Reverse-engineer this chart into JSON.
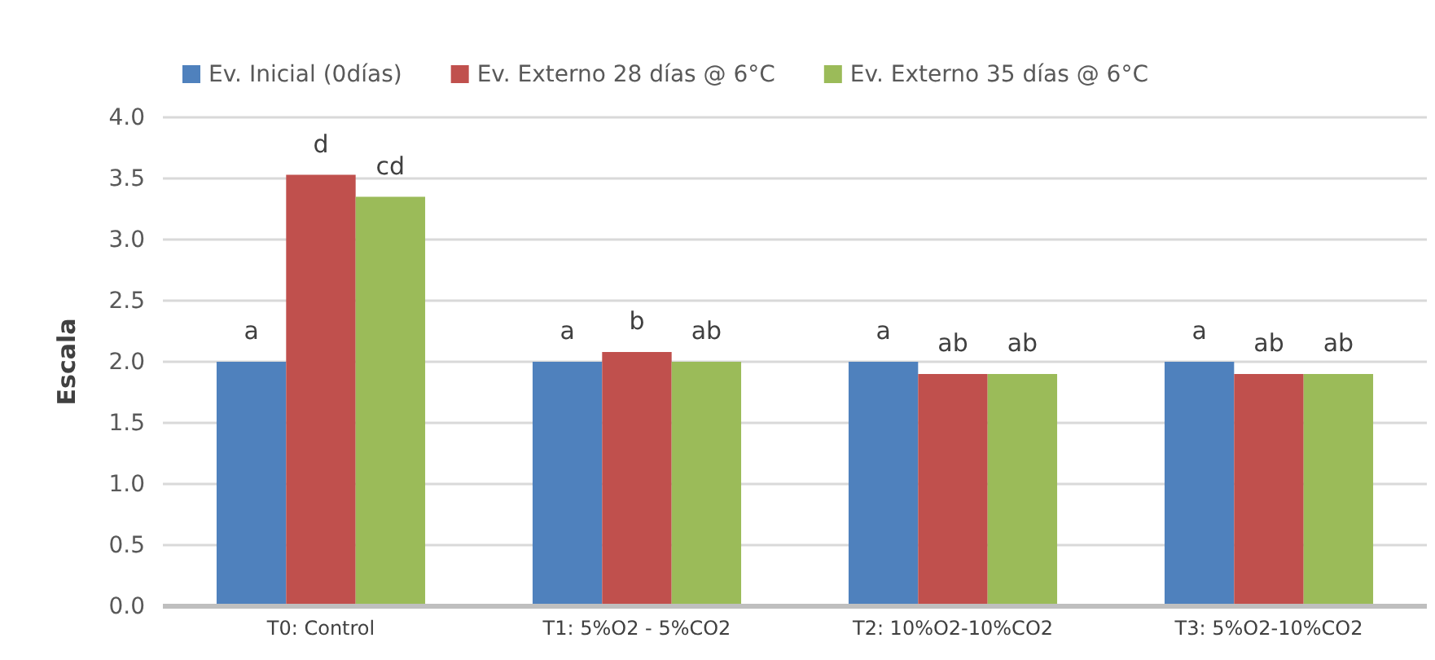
{
  "chart_data": {
    "type": "bar",
    "ylabel": "Escala",
    "categories": [
      "T0: Control",
      "T1: 5%O2 - 5%CO2",
      "T2: 10%O2-10%CO2",
      "T3: 5%O2-10%CO2"
    ],
    "series": [
      {
        "name": "Ev. Inicial (0días)",
        "color": "#4f81bd",
        "values": [
          2.0,
          2.0,
          2.0,
          2.0
        ],
        "value_labels": [
          "a",
          "a",
          "a",
          "a"
        ]
      },
      {
        "name": "Ev. Externo 28 días @ 6°C",
        "color": "#c0504d",
        "values": [
          3.53,
          2.08,
          1.9,
          1.9
        ],
        "value_labels": [
          "d",
          "b",
          "ab",
          "ab"
        ]
      },
      {
        "name": "Ev. Externo 35 días @ 6°C",
        "color": "#9bbb59",
        "values": [
          3.35,
          2.0,
          1.9,
          1.9
        ],
        "value_labels": [
          "cd",
          "ab",
          "ab",
          "ab"
        ]
      }
    ],
    "ylim": [
      0,
      4
    ],
    "yticks": [
      {
        "value": 0,
        "label": "0.0"
      },
      {
        "value": 0.5,
        "label": "0.5"
      },
      {
        "value": 1,
        "label": "1.0"
      },
      {
        "value": 1.5,
        "label": "1.5"
      },
      {
        "value": 2,
        "label": "2.0"
      },
      {
        "value": 2.5,
        "label": "2.5"
      },
      {
        "value": 3,
        "label": "3.0"
      },
      {
        "value": 3.5,
        "label": "3.5"
      },
      {
        "value": 4,
        "label": "4.0"
      }
    ],
    "grid": "y",
    "legend": "top"
  }
}
